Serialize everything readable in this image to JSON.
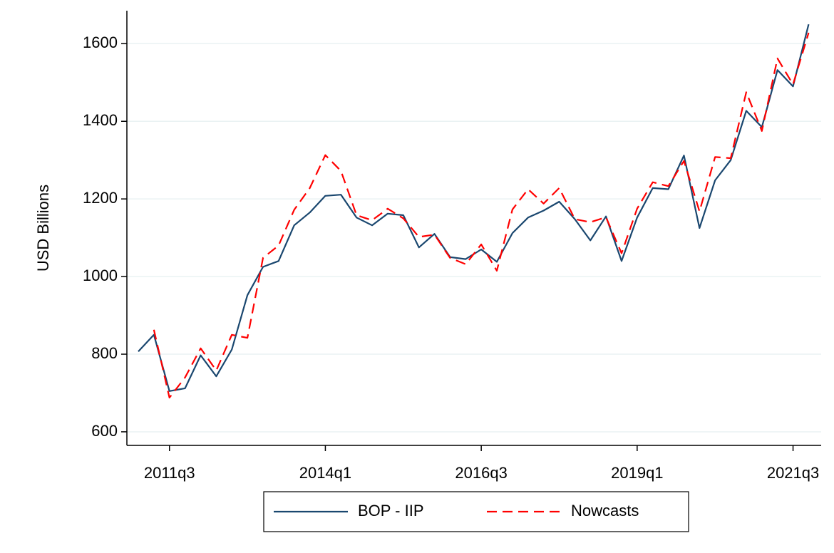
{
  "chart_data": {
    "type": "line",
    "ylabel": "USD Billions",
    "categories": [
      null,
      null,
      "2011q3",
      null,
      null,
      null,
      null,
      null,
      null,
      null,
      null,
      null,
      "2014q1",
      null,
      null,
      null,
      null,
      null,
      null,
      null,
      null,
      null,
      "2016q3",
      null,
      null,
      null,
      null,
      null,
      null,
      null,
      null,
      null,
      "2019q1",
      null,
      null,
      null,
      null,
      null,
      null,
      null,
      null,
      null,
      "2021q3",
      null
    ],
    "series": [
      {
        "name": "BOP - IIP",
        "color": "#1a476f",
        "style": "solid",
        "values": [
          807,
          850,
          705,
          712,
          797,
          743,
          812,
          952,
          1025,
          1040,
          1132,
          1165,
          1208,
          1211,
          1152,
          1132,
          1162,
          1158,
          1075,
          1110,
          1050,
          1045,
          1070,
          1038,
          1112,
          1152,
          1170,
          1193,
          1148,
          1093,
          1155,
          1040,
          1152,
          1228,
          1225,
          1312,
          1125,
          1248,
          1300,
          1427,
          1385,
          1532,
          1490,
          1650
        ]
      },
      {
        "name": "Nowcasts",
        "color": "#ff0000",
        "style": "dashed",
        "values": [
          null,
          863,
          688,
          740,
          815,
          758,
          850,
          842,
          1048,
          1080,
          1172,
          1228,
          1313,
          1272,
          1158,
          1145,
          1175,
          1150,
          1102,
          1108,
          1048,
          1032,
          1083,
          1015,
          1173,
          1225,
          1188,
          1228,
          1148,
          1140,
          1153,
          1060,
          1175,
          1243,
          1233,
          1298,
          1168,
          1308,
          1305,
          1475,
          1375,
          1562,
          1495,
          1628
        ]
      }
    ],
    "ylim": [
      565,
      1685
    ],
    "yticks": [
      600,
      800,
      1000,
      1200,
      1400,
      1600
    ],
    "grid": true,
    "legend": "bottom"
  }
}
